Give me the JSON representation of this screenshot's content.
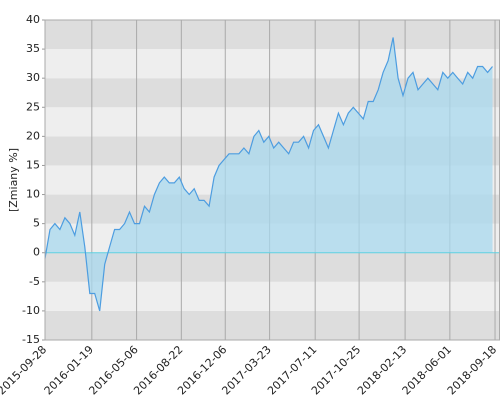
{
  "chart_data": {
    "type": "area",
    "y_label": "[Zmiany %]",
    "x": [
      "2015-09-28",
      "2015-10-10",
      "2015-10-22",
      "2015-11-03",
      "2015-11-15",
      "2015-11-27",
      "2015-12-09",
      "2015-12-21",
      "2016-01-02",
      "2016-01-14",
      "2016-01-26",
      "2016-02-07",
      "2016-02-19",
      "2016-03-02",
      "2016-03-14",
      "2016-03-26",
      "2016-04-07",
      "2016-04-19",
      "2016-05-01",
      "2016-05-13",
      "2016-05-25",
      "2016-06-06",
      "2016-06-18",
      "2016-06-30",
      "2016-07-12",
      "2016-07-24",
      "2016-08-05",
      "2016-08-17",
      "2016-08-29",
      "2016-09-10",
      "2016-09-22",
      "2016-10-04",
      "2016-10-16",
      "2016-10-28",
      "2016-11-09",
      "2016-11-21",
      "2016-12-03",
      "2016-12-15",
      "2016-12-27",
      "2017-01-08",
      "2017-01-20",
      "2017-02-01",
      "2017-02-13",
      "2017-02-25",
      "2017-03-09",
      "2017-03-21",
      "2017-04-02",
      "2017-04-14",
      "2017-04-26",
      "2017-05-08",
      "2017-05-20",
      "2017-06-01",
      "2017-06-13",
      "2017-06-25",
      "2017-07-07",
      "2017-07-19",
      "2017-07-31",
      "2017-08-12",
      "2017-08-24",
      "2017-09-05",
      "2017-09-17",
      "2017-09-29",
      "2017-10-11",
      "2017-10-23",
      "2017-11-04",
      "2017-11-16",
      "2017-11-28",
      "2017-12-10",
      "2017-12-22",
      "2018-01-03",
      "2018-01-15",
      "2018-01-27",
      "2018-02-08",
      "2018-02-20",
      "2018-03-04",
      "2018-03-16",
      "2018-03-28",
      "2018-04-09",
      "2018-04-21",
      "2018-05-03",
      "2018-05-15",
      "2018-05-27",
      "2018-06-08",
      "2018-06-20",
      "2018-07-02",
      "2018-07-14",
      "2018-07-26",
      "2018-08-07",
      "2018-08-19",
      "2018-08-31",
      "2018-09-12"
    ],
    "values": [
      -1,
      4,
      5,
      4,
      6,
      5,
      3,
      7,
      1,
      -7,
      -7,
      -10,
      -2,
      1,
      4,
      4,
      5,
      7,
      5,
      5,
      8,
      7,
      10,
      12,
      13,
      12,
      12,
      13,
      11,
      10,
      11,
      9,
      9,
      8,
      13,
      15,
      16,
      17,
      17,
      17,
      18,
      17,
      20,
      21,
      19,
      20,
      18,
      19,
      18,
      17,
      19,
      19,
      20,
      18,
      21,
      22,
      20,
      18,
      21,
      24,
      22,
      24,
      25,
      24,
      23,
      26,
      26,
      28,
      31,
      33,
      37,
      30,
      27,
      30,
      31,
      28,
      29,
      30,
      29,
      28,
      31,
      30,
      31,
      30,
      29,
      31,
      30,
      32,
      32,
      31,
      32
    ],
    "color": "#4d9de0",
    "area_color": "#a8d8ee",
    "zero_line_color": "#5fd0e0",
    "xlim": [
      "2015-09-28",
      "2018-09-30"
    ],
    "xticks": [
      "2015-09-28",
      "2016-01-19",
      "2016-05-06",
      "2016-08-22",
      "2016-12-06",
      "2017-03-23",
      "2017-07-11",
      "2017-10-25",
      "2018-02-13",
      "2018-06-01",
      "2018-09-18"
    ],
    "ylim": [
      -15,
      40
    ],
    "yticks": [
      -15,
      -10,
      -5,
      0,
      5,
      10,
      15,
      20,
      25,
      30,
      35,
      40
    ],
    "grid": true
  }
}
